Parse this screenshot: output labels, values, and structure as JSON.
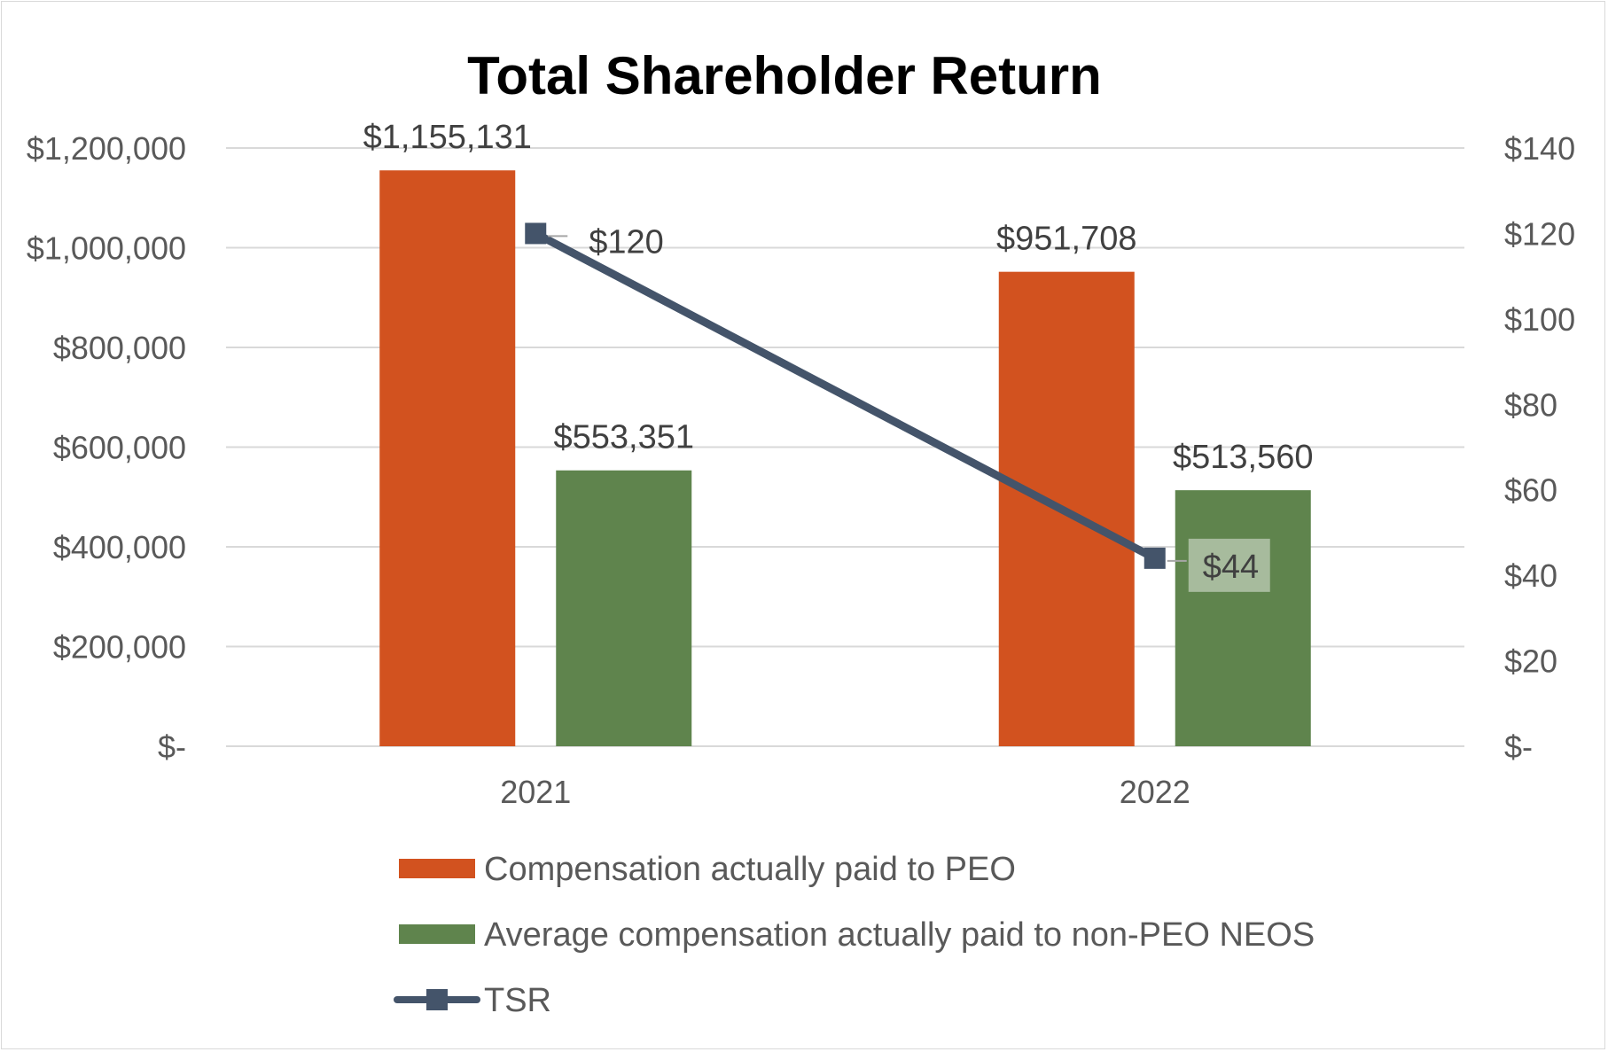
{
  "chart_data": {
    "type": "bar",
    "title": "Total Shareholder Return",
    "categories": [
      "2021",
      "2022"
    ],
    "series": [
      {
        "name": "Compensation actually paid to PEO",
        "type": "bar",
        "axis": "left",
        "color": "#d2521f",
        "values": [
          1155131,
          951708
        ],
        "labels": [
          "$1,155,131",
          "$951,708"
        ]
      },
      {
        "name": "Average compensation actually paid to non-PEO NEOS",
        "type": "bar",
        "axis": "left",
        "color": "#5f844d",
        "values": [
          553351,
          513560
        ],
        "labels": [
          "$553,351",
          "$513,560"
        ]
      },
      {
        "name": "TSR",
        "type": "line",
        "axis": "right",
        "color": "#44546a",
        "marker": "square",
        "values": [
          120,
          44
        ],
        "labels": [
          "$120",
          "$44"
        ]
      }
    ],
    "y_left": {
      "min": 0,
      "max": 1200000,
      "step": 200000,
      "tick_labels": [
        "$-",
        "$200,000",
        "$400,000",
        "$600,000",
        "$800,000",
        "$1,000,000",
        "$1,200,000"
      ]
    },
    "y_right": {
      "min": 0,
      "max": 140,
      "step": 20,
      "tick_labels": [
        "$-",
        "$20",
        "$40",
        "$60",
        "$80",
        "$100",
        "$120",
        "$140"
      ]
    },
    "grid": true,
    "legend_position": "bottom"
  }
}
